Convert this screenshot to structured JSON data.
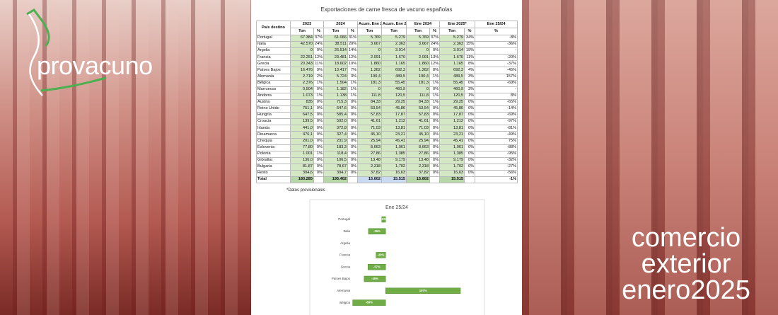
{
  "logo": {
    "text_light": "pro",
    "text_bold": "vacuno"
  },
  "headline": [
    "comercio",
    "exterior",
    "enero2025"
  ],
  "table": {
    "title": "Exportaciones de carne fresca de vacuno españolas",
    "columns_top": [
      "País destino",
      "2023",
      "2024",
      "Acum. Ene 24",
      "Acum. Ene 25*",
      "Ene 2024",
      "Ene 2025*",
      "Ene 25/24"
    ],
    "columns_sub": [
      "Ton",
      "%",
      "Ton",
      "%",
      "Ton",
      "Ton",
      "Ton",
      "%",
      "Ton",
      "%",
      "%"
    ],
    "rows": [
      [
        "Portugal",
        "67.384",
        "37%",
        "61.066",
        "31%",
        "5.769",
        "5.279",
        "5.769",
        "37%",
        "5.279",
        "34%",
        "-8%"
      ],
      [
        "Italia",
        "42.570",
        "24%",
        "38.511",
        "20%",
        "3.667",
        "2.363",
        "3.667",
        "24%",
        "2.363",
        "15%",
        "-36%"
      ],
      [
        "Argelia",
        "0",
        "0%",
        "26.514",
        "14%",
        "0",
        "3.014",
        "0",
        "0%",
        "3.014",
        "19%",
        "-"
      ],
      [
        "Francia",
        "22.251",
        "12%",
        "23.481",
        "12%",
        "2.091",
        "1.670",
        "2.091",
        "13%",
        "1.670",
        "11%",
        "-20%"
      ],
      [
        "Grecia",
        "20.343",
        "11%",
        "18.602",
        "10%",
        "1.860",
        "1.165",
        "1.860",
        "12%",
        "1.165",
        "8%",
        "-37%"
      ],
      [
        "Países Bajos",
        "16.476",
        "9%",
        "13.417",
        "7%",
        "1.262",
        "692,3",
        "1.262",
        "8%",
        "692,3",
        "4%",
        "-45%"
      ],
      [
        "Alemania",
        "2.719",
        "2%",
        "5.724",
        "3%",
        "190,4",
        "489,5",
        "190,4",
        "1%",
        "489,5",
        "3%",
        "157%"
      ],
      [
        "Bélgica",
        "2.376",
        "1%",
        "1.504",
        "1%",
        "181,3",
        "55,45",
        "181,3",
        "1%",
        "55,45",
        "0%",
        "-69%"
      ],
      [
        "Marruecos",
        "0,504",
        "0%",
        "1.182",
        "1%",
        "0",
        "460,9",
        "0",
        "0%",
        "460,9",
        "3%",
        "-"
      ],
      [
        "Andorra",
        "1.073",
        "1%",
        "1.138",
        "1%",
        "111,8",
        "120,5",
        "111,8",
        "1%",
        "120,5",
        "1%",
        "8%"
      ],
      [
        "Austria",
        "835",
        "0%",
        "715,3",
        "0%",
        "84,33",
        "29,25",
        "84,33",
        "1%",
        "29,25",
        "0%",
        "-65%"
      ],
      [
        "Reino Unido",
        "751,1",
        "0%",
        "647,6",
        "0%",
        "53,54",
        "45,86",
        "53,54",
        "0%",
        "45,86",
        "0%",
        "-14%"
      ],
      [
        "Hungría",
        "647,5",
        "0%",
        "585,4",
        "0%",
        "57,83",
        "17,87",
        "57,83",
        "0%",
        "17,87",
        "0%",
        "-69%"
      ],
      [
        "Croacia",
        "139,5",
        "0%",
        "502,0",
        "0%",
        "41,61",
        "1,212",
        "41,61",
        "0%",
        "1,212",
        "0%",
        "-97%"
      ],
      [
        "Irlanda",
        "441,0",
        "0%",
        "372,8",
        "0%",
        "71,03",
        "13,81",
        "71,03",
        "0%",
        "13,81",
        "0%",
        "-81%"
      ],
      [
        "Dinamarca",
        "476,1",
        "0%",
        "327,4",
        "0%",
        "45,10",
        "23,21",
        "45,10",
        "0%",
        "23,21",
        "0%",
        "-49%"
      ],
      [
        "Chequia",
        "201,0",
        "0%",
        "231,9",
        "0%",
        "25,94",
        "45,41",
        "25,94",
        "0%",
        "45,41",
        "0%",
        "75%"
      ],
      [
        "Eslovenia",
        "77,80",
        "0%",
        "183,3",
        "0%",
        "8,663",
        "1,061",
        "8,663",
        "0%",
        "1,061",
        "0%",
        "-88%"
      ],
      [
        "Polonia",
        "1.001",
        "1%",
        "118,4",
        "0%",
        "27,86",
        "1,385",
        "27,86",
        "0%",
        "1,385",
        "0%",
        "-95%"
      ],
      [
        "Gibraltar",
        "136,0",
        "0%",
        "106,5",
        "0%",
        "13,48",
        "9,179",
        "13,48",
        "0%",
        "9,179",
        "0%",
        "-32%"
      ],
      [
        "Bulgaria",
        "81,87",
        "0%",
        "78,67",
        "0%",
        "2,318",
        "1,702",
        "2,318",
        "0%",
        "1,702",
        "0%",
        "-27%"
      ],
      [
        "Resto",
        "304,6",
        "0%",
        "394,7",
        "0%",
        "37,82",
        "16,63",
        "37,82",
        "0%",
        "16,63",
        "0%",
        "-56%"
      ],
      [
        "Total",
        "180.285",
        null,
        "195.402",
        null,
        "15.602",
        "15.515",
        "15.602",
        null,
        "15.515",
        null,
        "-1%"
      ]
    ],
    "note": "*Datos provisionales"
  },
  "chart_data": {
    "type": "bar",
    "orientation": "horizontal",
    "title": "Ene 25/24",
    "categories": [
      "Portugal",
      "Italia",
      "Argelia",
      "Francia",
      "Grecia",
      "Países Bajos",
      "Alemania",
      "Bélgica"
    ],
    "values": [
      -8,
      -36,
      null,
      -20,
      -37,
      -45,
      157,
      -69
    ],
    "value_labels": [
      "-8%",
      "-36%",
      null,
      "-20%",
      "-37%",
      "-45%",
      "157%",
      "-69%"
    ],
    "color": "#70ad47",
    "xlim": [
      -70,
      200
    ]
  }
}
